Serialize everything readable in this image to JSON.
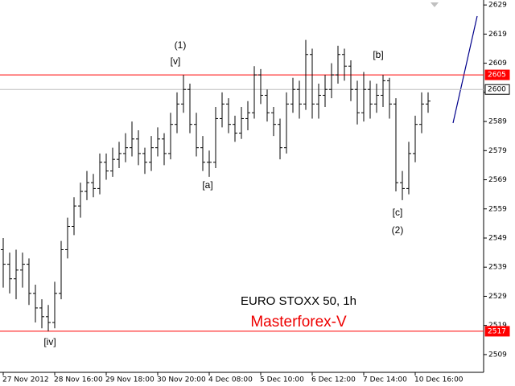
{
  "chart_data": {
    "type": "ohlc",
    "title": "EURO STOXX 50, 1h",
    "subtitle": "Masterforex-V",
    "subtitle_color": "#ee0000",
    "bar_color": "#000000",
    "categories": [
      "27 Nov 2012",
      null,
      null,
      null,
      null,
      null,
      null,
      null,
      "28 Nov 16:00",
      null,
      null,
      null,
      null,
      null,
      null,
      null,
      "29 Nov 18:00",
      null,
      null,
      null,
      null,
      null,
      null,
      null,
      "30 Nov 20:00",
      null,
      null,
      null,
      null,
      null,
      null,
      null,
      "4 Dec 08:00",
      null,
      null,
      null,
      null,
      null,
      null,
      null,
      "5 Dec 10:00",
      null,
      null,
      null,
      null,
      null,
      null,
      null,
      "6 Dec 12:00",
      null,
      null,
      null,
      null,
      null,
      null,
      null,
      "7 Dec 14:00",
      null,
      null,
      null,
      null,
      null,
      null,
      null,
      "10 Dec 16:00",
      null,
      null
    ],
    "open": [
      2545,
      2540,
      2535,
      2538,
      2540,
      2530,
      2525,
      2522,
      2520,
      2530,
      2545,
      2553,
      2560,
      2565,
      2568,
      2566,
      2575,
      2572,
      2576,
      2578,
      2580,
      2583,
      2578,
      2575,
      2580,
      2583,
      2578,
      2588,
      2595,
      2600,
      2588,
      2580,
      2575,
      2575,
      2590,
      2595,
      2588,
      2585,
      2590,
      2592,
      2605,
      2598,
      2592,
      2588,
      2580,
      2595,
      2600,
      2595,
      2612,
      2595,
      2598,
      2600,
      2605,
      2612,
      2608,
      2600,
      2592,
      2600,
      2595,
      2598,
      2603,
      2595,
      2568,
      2566,
      2578,
      2588,
      2595
    ],
    "high": [
      2549,
      2544,
      2545,
      2544,
      2542,
      2533,
      2528,
      2526,
      2534,
      2548,
      2556,
      2563,
      2568,
      2572,
      2571,
      2578,
      2578,
      2580,
      2582,
      2585,
      2589,
      2586,
      2580,
      2584,
      2587,
      2585,
      2592,
      2599,
      2605,
      2602,
      2592,
      2584,
      2579,
      2594,
      2599,
      2597,
      2591,
      2594,
      2596,
      2608,
      2607,
      2600,
      2594,
      2590,
      2599,
      2604,
      2603,
      2617,
      2614,
      2602,
      2605,
      2609,
      2615,
      2614,
      2610,
      2603,
      2606,
      2603,
      2602,
      2605,
      2604,
      2597,
      2572,
      2582,
      2591,
      2599,
      2599
    ],
    "low": [
      2532,
      2530,
      2528,
      2532,
      2526,
      2520,
      2518,
      2517,
      2518,
      2528,
      2542,
      2550,
      2556,
      2562,
      2563,
      2564,
      2569,
      2570,
      2573,
      2575,
      2577,
      2574,
      2571,
      2572,
      2577,
      2574,
      2576,
      2585,
      2592,
      2585,
      2577,
      2572,
      2570,
      2573,
      2587,
      2585,
      2582,
      2583,
      2586,
      2590,
      2595,
      2589,
      2584,
      2576,
      2578,
      2592,
      2590,
      2593,
      2590,
      2590,
      2594,
      2597,
      2602,
      2603,
      2596,
      2588,
      2589,
      2590,
      2592,
      2594,
      2590,
      2565,
      2562,
      2564,
      2575,
      2585,
      2592
    ],
    "close": [
      2540,
      2535,
      2538,
      2540,
      2530,
      2525,
      2522,
      2520,
      2530,
      2545,
      2553,
      2560,
      2565,
      2568,
      2566,
      2575,
      2572,
      2576,
      2578,
      2580,
      2583,
      2578,
      2575,
      2580,
      2583,
      2578,
      2588,
      2595,
      2600,
      2588,
      2580,
      2575,
      2575,
      2590,
      2595,
      2588,
      2585,
      2590,
      2592,
      2605,
      2598,
      2592,
      2588,
      2580,
      2595,
      2600,
      2595,
      2612,
      2595,
      2598,
      2600,
      2605,
      2612,
      2608,
      2600,
      2592,
      2600,
      2595,
      2598,
      2603,
      2595,
      2568,
      2566,
      2578,
      2588,
      2595,
      2596
    ],
    "ylim": [
      2502.9,
      2630.7
    ],
    "yticks": [
      2509,
      2519,
      2529,
      2539,
      2549,
      2559,
      2569,
      2579,
      2589,
      2599,
      2609,
      2619,
      2629
    ],
    "lines": [
      {
        "value": 2605,
        "color": "#ff0000"
      },
      {
        "value": 2600,
        "color": "#c0c0c0"
      },
      {
        "value": 2517,
        "color": "#ff0000"
      }
    ],
    "annotations": [
      "(1)",
      "[v]",
      "[a]",
      "[b]",
      "[c]",
      "(2)",
      "[iv]"
    ]
  }
}
